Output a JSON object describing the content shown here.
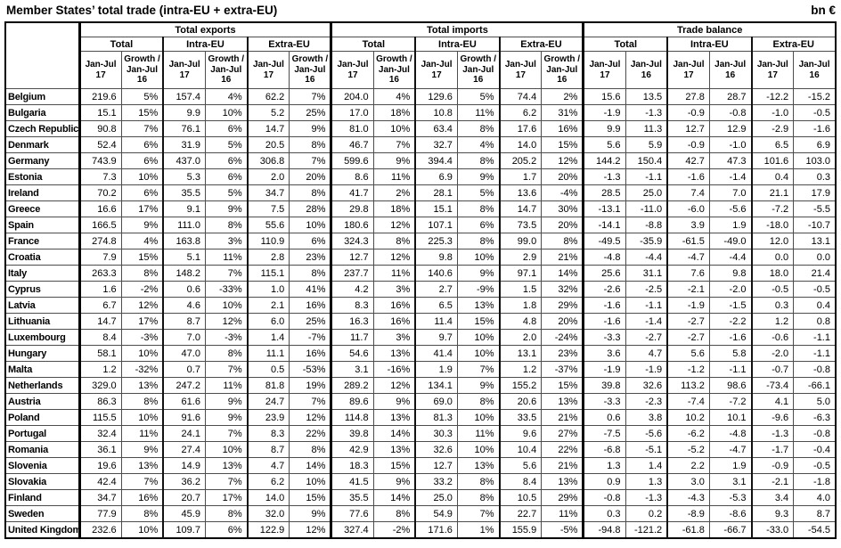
{
  "title": "Member States’ total trade (intra-EU + extra-EU)",
  "unit_label": "bn €",
  "header_row3": [
    "Jan-Jul 17",
    "Growth / Jan-Jul 16",
    "Jan-Jul 17",
    "Growth / Jan-Jul 16",
    "Jan-Jul 17",
    "Growth / Jan-Jul 16",
    "Jan-Jul 17",
    "Growth / Jan-Jul 16",
    "Jan-Jul 17",
    "Growth / Jan-Jul 16",
    "Jan-Jul 17",
    "Growth / Jan-Jul 16",
    "Jan-Jul 17",
    "Jan-Jul 16",
    "Jan-Jul 17",
    "Jan-Jul 16",
    "Jan-Jul 17",
    "Jan-Jul 16"
  ],
  "chart_data": {
    "type": "table",
    "column_groups": [
      "Total exports",
      "Total imports",
      "Trade balance"
    ],
    "subgroups": [
      "Total",
      "Intra-EU",
      "Extra-EU"
    ],
    "export_import_cols": [
      "Jan-Jul 17",
      "Growth / Jan-Jul 16"
    ],
    "balance_cols": [
      "Jan-Jul 17",
      "Jan-Jul 16"
    ],
    "rows": [
      {
        "country": "Belgium",
        "values": [
          "219.6",
          "5%",
          "157.4",
          "4%",
          "62.2",
          "7%",
          "204.0",
          "4%",
          "129.6",
          "5%",
          "74.4",
          "2%",
          "15.6",
          "13.5",
          "27.8",
          "28.7",
          "-12.2",
          "-15.2"
        ]
      },
      {
        "country": "Bulgaria",
        "values": [
          "15.1",
          "15%",
          "9.9",
          "10%",
          "5.2",
          "25%",
          "17.0",
          "18%",
          "10.8",
          "11%",
          "6.2",
          "31%",
          "-1.9",
          "-1.3",
          "-0.9",
          "-0.8",
          "-1.0",
          "-0.5"
        ]
      },
      {
        "country": "Czech Republic",
        "values": [
          "90.8",
          "7%",
          "76.1",
          "6%",
          "14.7",
          "9%",
          "81.0",
          "10%",
          "63.4",
          "8%",
          "17.6",
          "16%",
          "9.9",
          "11.3",
          "12.7",
          "12.9",
          "-2.9",
          "-1.6"
        ]
      },
      {
        "country": "Denmark",
        "values": [
          "52.4",
          "6%",
          "31.9",
          "5%",
          "20.5",
          "8%",
          "46.7",
          "7%",
          "32.7",
          "4%",
          "14.0",
          "15%",
          "5.6",
          "5.9",
          "-0.9",
          "-1.0",
          "6.5",
          "6.9"
        ]
      },
      {
        "country": "Germany",
        "values": [
          "743.9",
          "6%",
          "437.0",
          "6%",
          "306.8",
          "7%",
          "599.6",
          "9%",
          "394.4",
          "8%",
          "205.2",
          "12%",
          "144.2",
          "150.4",
          "42.7",
          "47.3",
          "101.6",
          "103.0"
        ]
      },
      {
        "country": "Estonia",
        "values": [
          "7.3",
          "10%",
          "5.3",
          "6%",
          "2.0",
          "20%",
          "8.6",
          "11%",
          "6.9",
          "9%",
          "1.7",
          "20%",
          "-1.3",
          "-1.1",
          "-1.6",
          "-1.4",
          "0.4",
          "0.3"
        ]
      },
      {
        "country": "Ireland",
        "values": [
          "70.2",
          "6%",
          "35.5",
          "5%",
          "34.7",
          "8%",
          "41.7",
          "2%",
          "28.1",
          "5%",
          "13.6",
          "-4%",
          "28.5",
          "25.0",
          "7.4",
          "7.0",
          "21.1",
          "17.9"
        ]
      },
      {
        "country": "Greece",
        "values": [
          "16.6",
          "17%",
          "9.1",
          "9%",
          "7.5",
          "28%",
          "29.8",
          "18%",
          "15.1",
          "8%",
          "14.7",
          "30%",
          "-13.1",
          "-11.0",
          "-6.0",
          "-5.6",
          "-7.2",
          "-5.5"
        ]
      },
      {
        "country": "Spain",
        "values": [
          "166.5",
          "9%",
          "111.0",
          "8%",
          "55.6",
          "10%",
          "180.6",
          "12%",
          "107.1",
          "6%",
          "73.5",
          "20%",
          "-14.1",
          "-8.8",
          "3.9",
          "1.9",
          "-18.0",
          "-10.7"
        ]
      },
      {
        "country": "France",
        "values": [
          "274.8",
          "4%",
          "163.8",
          "3%",
          "110.9",
          "6%",
          "324.3",
          "8%",
          "225.3",
          "8%",
          "99.0",
          "8%",
          "-49.5",
          "-35.9",
          "-61.5",
          "-49.0",
          "12.0",
          "13.1"
        ]
      },
      {
        "country": "Croatia",
        "values": [
          "7.9",
          "15%",
          "5.1",
          "11%",
          "2.8",
          "23%",
          "12.7",
          "12%",
          "9.8",
          "10%",
          "2.9",
          "21%",
          "-4.8",
          "-4.4",
          "-4.7",
          "-4.4",
          "0.0",
          "0.0"
        ]
      },
      {
        "country": "Italy",
        "values": [
          "263.3",
          "8%",
          "148.2",
          "7%",
          "115.1",
          "8%",
          "237.7",
          "11%",
          "140.6",
          "9%",
          "97.1",
          "14%",
          "25.6",
          "31.1",
          "7.6",
          "9.8",
          "18.0",
          "21.4"
        ]
      },
      {
        "country": "Cyprus",
        "values": [
          "1.6",
          "-2%",
          "0.6",
          "-33%",
          "1.0",
          "41%",
          "4.2",
          "3%",
          "2.7",
          "-9%",
          "1.5",
          "32%",
          "-2.6",
          "-2.5",
          "-2.1",
          "-2.0",
          "-0.5",
          "-0.5"
        ]
      },
      {
        "country": "Latvia",
        "values": [
          "6.7",
          "12%",
          "4.6",
          "10%",
          "2.1",
          "16%",
          "8.3",
          "16%",
          "6.5",
          "13%",
          "1.8",
          "29%",
          "-1.6",
          "-1.1",
          "-1.9",
          "-1.5",
          "0.3",
          "0.4"
        ]
      },
      {
        "country": "Lithuania",
        "values": [
          "14.7",
          "17%",
          "8.7",
          "12%",
          "6.0",
          "25%",
          "16.3",
          "16%",
          "11.4",
          "15%",
          "4.8",
          "20%",
          "-1.6",
          "-1.4",
          "-2.7",
          "-2.2",
          "1.2",
          "0.8"
        ]
      },
      {
        "country": "Luxembourg",
        "values": [
          "8.4",
          "-3%",
          "7.0",
          "-3%",
          "1.4",
          "-7%",
          "11.7",
          "3%",
          "9.7",
          "10%",
          "2.0",
          "-24%",
          "-3.3",
          "-2.7",
          "-2.7",
          "-1.6",
          "-0.6",
          "-1.1"
        ]
      },
      {
        "country": "Hungary",
        "values": [
          "58.1",
          "10%",
          "47.0",
          "8%",
          "11.1",
          "16%",
          "54.6",
          "13%",
          "41.4",
          "10%",
          "13.1",
          "23%",
          "3.6",
          "4.7",
          "5.6",
          "5.8",
          "-2.0",
          "-1.1"
        ]
      },
      {
        "country": "Malta",
        "values": [
          "1.2",
          "-32%",
          "0.7",
          "7%",
          "0.5",
          "-53%",
          "3.1",
          "-16%",
          "1.9",
          "7%",
          "1.2",
          "-37%",
          "-1.9",
          "-1.9",
          "-1.2",
          "-1.1",
          "-0.7",
          "-0.8"
        ]
      },
      {
        "country": "Netherlands",
        "values": [
          "329.0",
          "13%",
          "247.2",
          "11%",
          "81.8",
          "19%",
          "289.2",
          "12%",
          "134.1",
          "9%",
          "155.2",
          "15%",
          "39.8",
          "32.6",
          "113.2",
          "98.6",
          "-73.4",
          "-66.1"
        ]
      },
      {
        "country": "Austria",
        "values": [
          "86.3",
          "8%",
          "61.6",
          "9%",
          "24.7",
          "7%",
          "89.6",
          "9%",
          "69.0",
          "8%",
          "20.6",
          "13%",
          "-3.3",
          "-2.3",
          "-7.4",
          "-7.2",
          "4.1",
          "5.0"
        ]
      },
      {
        "country": "Poland",
        "values": [
          "115.5",
          "10%",
          "91.6",
          "9%",
          "23.9",
          "12%",
          "114.8",
          "13%",
          "81.3",
          "10%",
          "33.5",
          "21%",
          "0.6",
          "3.8",
          "10.2",
          "10.1",
          "-9.6",
          "-6.3"
        ]
      },
      {
        "country": "Portugal",
        "values": [
          "32.4",
          "11%",
          "24.1",
          "7%",
          "8.3",
          "22%",
          "39.8",
          "14%",
          "30.3",
          "11%",
          "9.6",
          "27%",
          "-7.5",
          "-5.6",
          "-6.2",
          "-4.8",
          "-1.3",
          "-0.8"
        ]
      },
      {
        "country": "Romania",
        "values": [
          "36.1",
          "9%",
          "27.4",
          "10%",
          "8.7",
          "8%",
          "42.9",
          "13%",
          "32.6",
          "10%",
          "10.4",
          "22%",
          "-6.8",
          "-5.1",
          "-5.2",
          "-4.7",
          "-1.7",
          "-0.4"
        ]
      },
      {
        "country": "Slovenia",
        "values": [
          "19.6",
          "13%",
          "14.9",
          "13%",
          "4.7",
          "14%",
          "18.3",
          "15%",
          "12.7",
          "13%",
          "5.6",
          "21%",
          "1.3",
          "1.4",
          "2.2",
          "1.9",
          "-0.9",
          "-0.5"
        ]
      },
      {
        "country": "Slovakia",
        "values": [
          "42.4",
          "7%",
          "36.2",
          "7%",
          "6.2",
          "10%",
          "41.5",
          "9%",
          "33.2",
          "8%",
          "8.4",
          "13%",
          "0.9",
          "1.3",
          "3.0",
          "3.1",
          "-2.1",
          "-1.8"
        ]
      },
      {
        "country": "Finland",
        "values": [
          "34.7",
          "16%",
          "20.7",
          "17%",
          "14.0",
          "15%",
          "35.5",
          "14%",
          "25.0",
          "8%",
          "10.5",
          "29%",
          "-0.8",
          "-1.3",
          "-4.3",
          "-5.3",
          "3.4",
          "4.0"
        ]
      },
      {
        "country": "Sweden",
        "values": [
          "77.9",
          "8%",
          "45.9",
          "8%",
          "32.0",
          "9%",
          "77.6",
          "8%",
          "54.9",
          "7%",
          "22.7",
          "11%",
          "0.3",
          "0.2",
          "-8.9",
          "-8.6",
          "9.3",
          "8.7"
        ]
      },
      {
        "country": "United Kingdom",
        "values": [
          "232.6",
          "10%",
          "109.7",
          "6%",
          "122.9",
          "12%",
          "327.4",
          "-2%",
          "171.6",
          "1%",
          "155.9",
          "-5%",
          "-94.8",
          "-121.2",
          "-61.8",
          "-66.7",
          "-33.0",
          "-54.5"
        ]
      }
    ]
  }
}
